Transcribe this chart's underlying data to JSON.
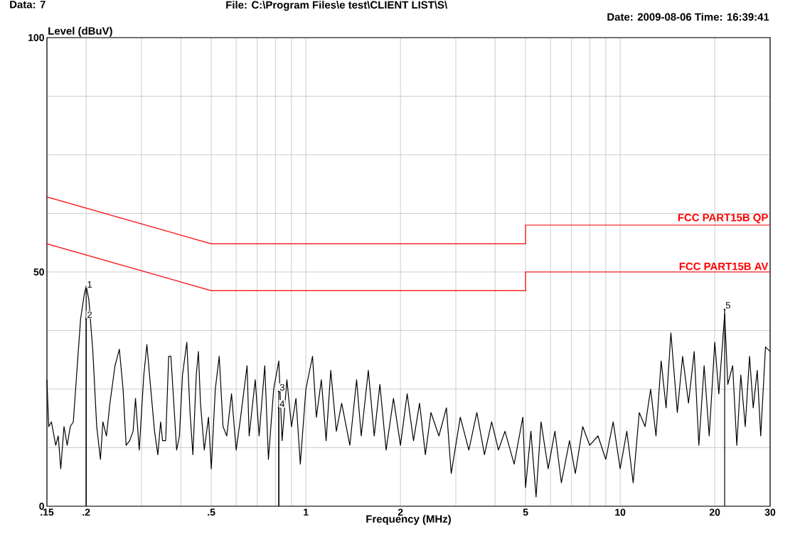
{
  "chart_data": {
    "type": "line",
    "xlabel": "Frequency (MHz)",
    "ylabel": "Level (dBuV)",
    "annotations": [
      "Data: 7",
      "File: C:\\Program Files\\e test\\CLIENT LIST\\S\\",
      "Date: 2009-08-06  Time: 16:39:41",
      "1",
      "2",
      "3",
      "4",
      "5"
    ],
    "log": "x",
    "grid": true,
    "marker": "none",
    "line_style": "solid",
    "xlim": [
      0.15,
      30
    ],
    "ylim": [
      0,
      100
    ],
    "xticks": [
      {
        "value": 0.15,
        "label": ".15"
      },
      {
        "value": 0.2,
        "label": ".2"
      },
      {
        "value": 0.3,
        "label": null
      },
      {
        "value": 0.4,
        "label": null
      },
      {
        "value": 0.5,
        "label": ".5"
      },
      {
        "value": 0.6,
        "label": null
      },
      {
        "value": 0.7,
        "label": null
      },
      {
        "value": 0.8,
        "label": null
      },
      {
        "value": 0.9,
        "label": null
      },
      1,
      2,
      {
        "value": 3,
        "label": null
      },
      {
        "value": 4,
        "label": null
      },
      5,
      {
        "value": 6,
        "label": null
      },
      {
        "value": 7,
        "label": null
      },
      {
        "value": 8,
        "label": null
      },
      {
        "value": 9,
        "label": null
      },
      10,
      20,
      30
    ],
    "yticks": [
      0,
      {
        "value": 12.5,
        "label": null
      },
      {
        "value": 25,
        "label": null
      },
      {
        "value": 37.5,
        "label": null
      },
      50,
      {
        "value": 62.5,
        "label": null
      },
      {
        "value": 75,
        "label": null
      },
      {
        "value": 87.5,
        "label": null
      },
      100
    ],
    "series": [
      {
        "color": "#000000",
        "x": [
          0.15,
          0.152,
          0.155,
          0.16,
          0.163,
          0.166,
          0.17,
          0.174,
          0.178,
          0.182,
          0.186,
          0.192,
          0.197,
          0.2,
          0.204,
          0.21,
          0.216,
          0.222,
          0.226,
          0.232,
          0.238,
          0.247,
          0.255,
          0.262,
          0.268,
          0.275,
          0.282,
          0.287,
          0.295,
          0.305,
          0.312,
          0.32,
          0.33,
          0.338,
          0.345,
          0.35,
          0.358,
          0.366,
          0.372,
          0.38,
          0.388,
          0.396,
          0.405,
          0.418,
          0.428,
          0.437,
          0.448,
          0.455,
          0.462,
          0.475,
          0.49,
          0.5,
          0.515,
          0.53,
          0.545,
          0.56,
          0.58,
          0.6,
          0.62,
          0.65,
          0.66,
          0.69,
          0.71,
          0.74,
          0.76,
          0.79,
          0.82,
          0.84,
          0.87,
          0.9,
          0.93,
          0.96,
          1.0,
          1.05,
          1.08,
          1.12,
          1.16,
          1.2,
          1.25,
          1.3,
          1.38,
          1.45,
          1.5,
          1.58,
          1.65,
          1.72,
          1.8,
          1.9,
          2.0,
          2.1,
          2.2,
          2.3,
          2.4,
          2.5,
          2.65,
          2.8,
          2.9,
          3.1,
          3.3,
          3.5,
          3.7,
          3.9,
          4.1,
          4.3,
          4.6,
          4.9,
          5.0,
          5.2,
          5.4,
          5.6,
          5.9,
          6.2,
          6.5,
          6.9,
          7.2,
          7.6,
          8.0,
          8.5,
          9.0,
          9.5,
          10.0,
          10.5,
          11.0,
          11.5,
          12.0,
          12.5,
          13.0,
          13.5,
          14.0,
          14.5,
          15.2,
          15.8,
          16.5,
          17.2,
          17.8,
          18.5,
          19.2,
          20.0,
          20.6,
          21.5,
          22.0,
          22.8,
          23.5,
          24.2,
          25.0,
          25.8,
          26.5,
          27.3,
          28.0,
          29.0,
          30
        ],
        "values": [
          27,
          17,
          18,
          13,
          15,
          8,
          17,
          13,
          17,
          18,
          27,
          40,
          45,
          47,
          44,
          33,
          17,
          10,
          18,
          15,
          22,
          30,
          33.5,
          25,
          13,
          14,
          16,
          23,
          12,
          28,
          34.5,
          26,
          16,
          11,
          18,
          14,
          14,
          32,
          32,
          22,
          12,
          15,
          28,
          35,
          20,
          11,
          28,
          33,
          22,
          12,
          19,
          8,
          25,
          32,
          17,
          15,
          24,
          12,
          19,
          30,
          15,
          27,
          15,
          30,
          10,
          25,
          31,
          14,
          27,
          17,
          23,
          9,
          25,
          32,
          19,
          27,
          14,
          29,
          16,
          22,
          13,
          27,
          15,
          29,
          15,
          26,
          12,
          23,
          13,
          24,
          14,
          22,
          11,
          20,
          15,
          21,
          7,
          19,
          12,
          20,
          11,
          18,
          12,
          16,
          9,
          19,
          4,
          16,
          2,
          18,
          8,
          16,
          5,
          14,
          7,
          17,
          13,
          15,
          10,
          18,
          8,
          16,
          5,
          20,
          17,
          25,
          15,
          31,
          21,
          37,
          20,
          32,
          22,
          33,
          13,
          30,
          15,
          35,
          24,
          41,
          26,
          30,
          13,
          28,
          17,
          32,
          21,
          29,
          15,
          34,
          33
        ]
      },
      {
        "type": "lollipop",
        "color": "#000000",
        "x": [
          0.2,
          0.2,
          0.82,
          0.82,
          21.5
        ],
        "values": [
          46.5,
          40,
          24.5,
          21,
          42
        ]
      },
      {
        "name": "FCC PART15B QP",
        "color": "#ff0000",
        "x": [
          0.15,
          0.5,
          5,
          5,
          30
        ],
        "values": [
          66,
          56,
          56,
          60,
          60
        ]
      },
      {
        "name": "FCC PART15B AV",
        "color": "#ff0000",
        "x": [
          0.15,
          0.5,
          5,
          5,
          30
        ],
        "values": [
          56,
          46,
          46,
          50,
          50
        ]
      }
    ]
  }
}
